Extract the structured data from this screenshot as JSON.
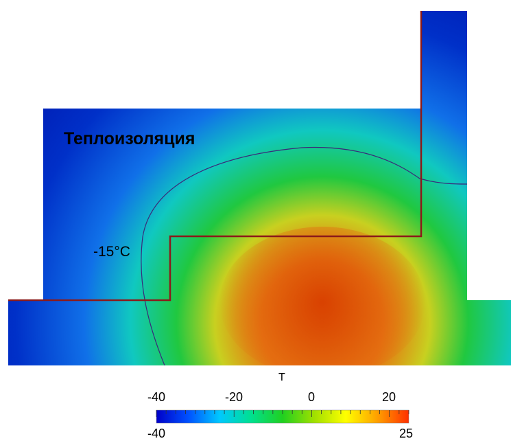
{
  "labels": {
    "region": "Теплоизоляция",
    "isotherm": "-15°C"
  },
  "colorbar": {
    "title": "T",
    "min": -40,
    "max": 25,
    "tick_labels": [
      "-40",
      "-20",
      "0",
      "20"
    ],
    "min_label": "-40",
    "max_label": "25",
    "colormap": [
      "#0000c8",
      "#0050ff",
      "#00c8ff",
      "#00e090",
      "#20d020",
      "#a0e000",
      "#ffff00",
      "#ffa000",
      "#ff3000"
    ]
  },
  "colors": {
    "interface_line": "#8b1a1a",
    "isotherm_line": "#3a2a7a"
  }
}
